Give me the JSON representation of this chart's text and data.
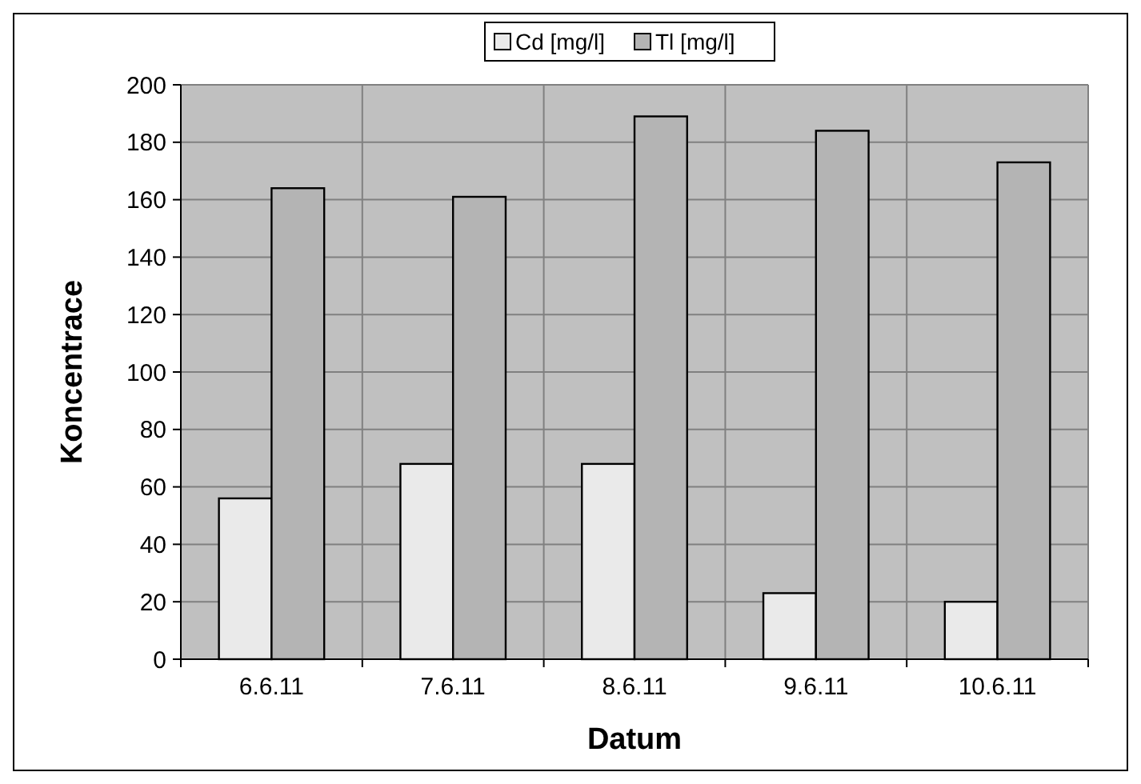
{
  "chart_data": {
    "type": "bar",
    "xlabel": "Datum",
    "ylabel": "Koncentrace",
    "categories": [
      "6.6.11",
      "7.6.11",
      "8.6.11",
      "9.6.11",
      "10.6.11"
    ],
    "series": [
      {
        "name": "Cd [mg/l]",
        "color": "#eaeaea",
        "values": [
          56,
          68,
          68,
          23,
          20
        ]
      },
      {
        "name": "Tl [mg/l]",
        "color": "#b4b4b4",
        "values": [
          164,
          161,
          189,
          184,
          173
        ]
      }
    ],
    "ylim": [
      0,
      200
    ],
    "yticks": [
      0,
      20,
      40,
      60,
      80,
      100,
      120,
      140,
      160,
      180,
      200
    ],
    "grid": true,
    "legend": "top"
  }
}
